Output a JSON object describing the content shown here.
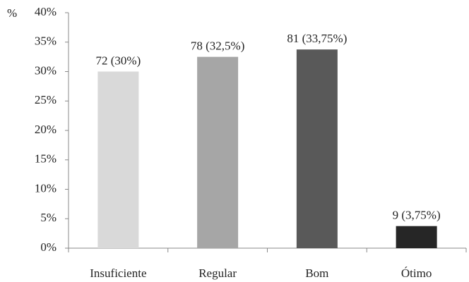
{
  "chart_data": {
    "type": "bar",
    "y_axis_label": "%",
    "categories": [
      "Insuficiente",
      "Regular",
      "Bom",
      "Ótimo"
    ],
    "values": [
      30,
      32.5,
      33.75,
      3.75
    ],
    "value_labels": [
      "72 (30%)",
      "78 (32,5%)",
      "81 (33,75%)",
      "9 (3,75%)"
    ],
    "colors": [
      "#d9d9d9",
      "#a6a6a6",
      "#595959",
      "#262626"
    ],
    "ylim": [
      0,
      40
    ],
    "yticks": [
      {
        "value": 0,
        "label": "0%"
      },
      {
        "value": 5,
        "label": "5%"
      },
      {
        "value": 10,
        "label": "10%"
      },
      {
        "value": 15,
        "label": "15%"
      },
      {
        "value": 20,
        "label": "20%"
      },
      {
        "value": 25,
        "label": "25%"
      },
      {
        "value": 30,
        "label": "30%"
      },
      {
        "value": 35,
        "label": "35%"
      },
      {
        "value": 40,
        "label": "40%"
      }
    ],
    "grid": false
  }
}
